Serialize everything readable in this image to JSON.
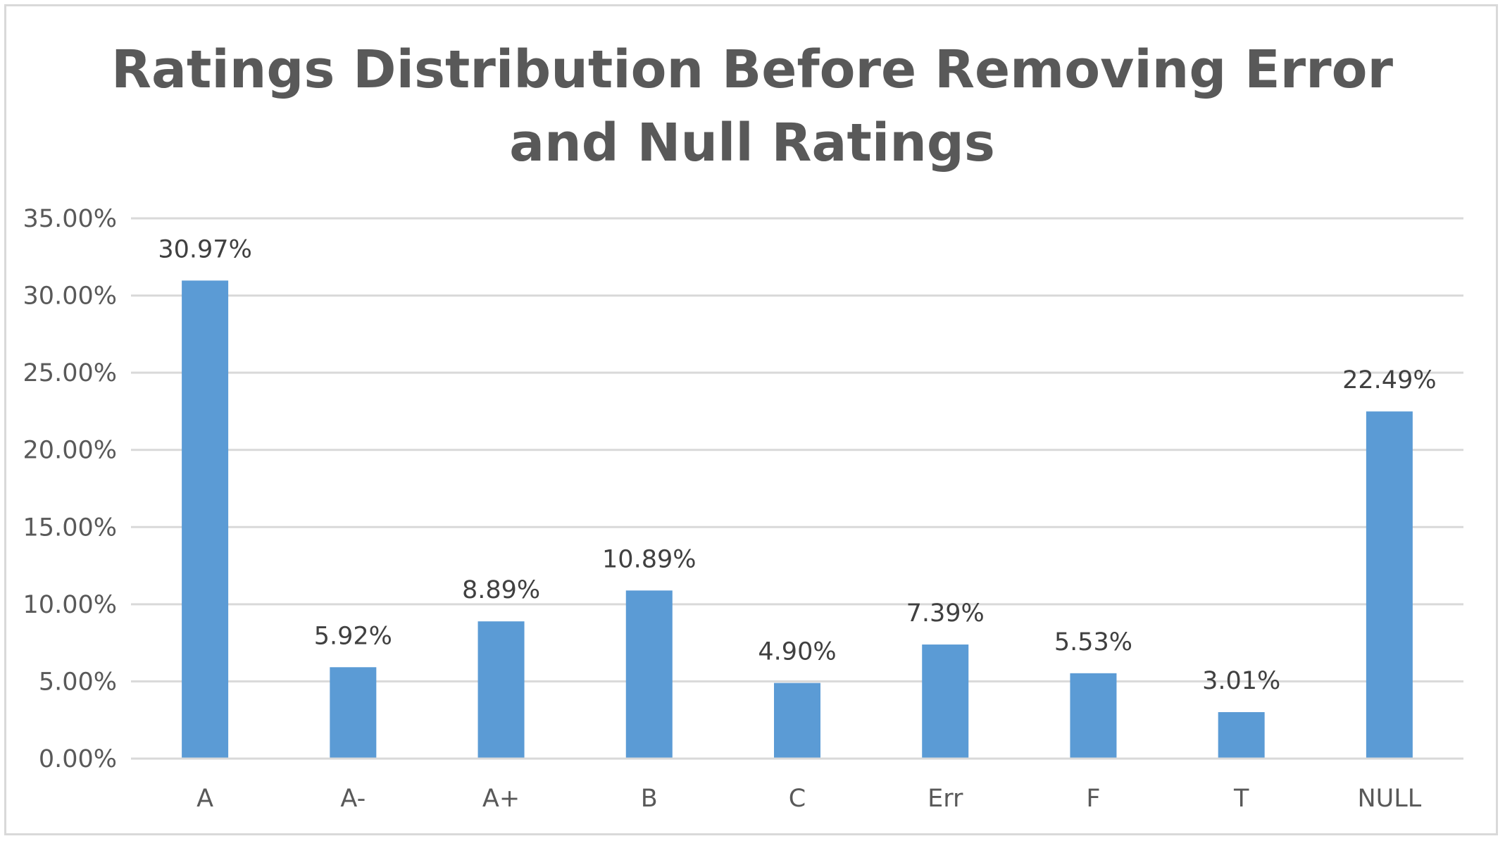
{
  "chart_data": {
    "type": "bar",
    "title_lines": [
      "Ratings Distribution Before Removing Error",
      "and Null Ratings"
    ],
    "categories": [
      "A",
      "A-",
      "A+",
      "B",
      "C",
      "Err",
      "F",
      "T",
      "NULL"
    ],
    "values": [
      30.97,
      5.92,
      8.89,
      10.89,
      4.9,
      7.39,
      5.53,
      3.01,
      22.49
    ],
    "data_labels": [
      "30.97%",
      "5.92%",
      "8.89%",
      "10.89%",
      "4.90%",
      "7.39%",
      "5.53%",
      "3.01%",
      "22.49%"
    ],
    "y_ticks": [
      0,
      5,
      10,
      15,
      20,
      25,
      30,
      35
    ],
    "y_tick_labels": [
      "0.00%",
      "5.00%",
      "10.00%",
      "15.00%",
      "20.00%",
      "25.00%",
      "30.00%",
      "35.00%"
    ],
    "ylim": [
      0,
      35
    ],
    "xlabel": "",
    "ylabel": "",
    "grid": true,
    "legend": "none",
    "bar_color": "#5b9bd5",
    "grid_color": "#d9d9d9",
    "text_color": "#595959"
  }
}
